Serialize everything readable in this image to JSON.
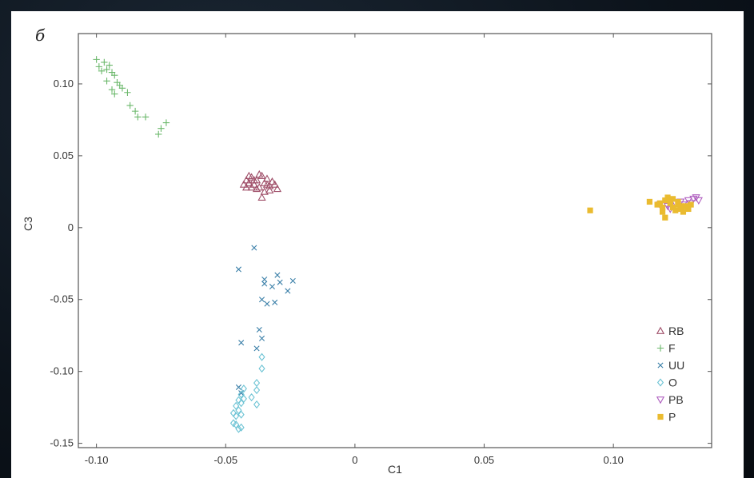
{
  "panel": {
    "label": "б"
  },
  "chart_data": {
    "type": "scatter",
    "title": "",
    "xlabel": "C1",
    "ylabel": "C3",
    "xlim": [
      -0.107,
      0.138
    ],
    "ylim": [
      -0.153,
      0.135
    ],
    "xticks": [
      -0.1,
      -0.05,
      0,
      0.05,
      0.1
    ],
    "xtick_labels": [
      "-0.10",
      "-0.05",
      "0",
      "0.05",
      "0.10"
    ],
    "yticks": [
      0.1,
      0.05,
      0,
      -0.05,
      -0.1,
      -0.15
    ],
    "ytick_labels": [
      "0.10",
      "0.05",
      "0",
      "-0.05",
      "-0.10",
      "-0.15"
    ],
    "grid": false,
    "legend_position": "bottom-right",
    "series": [
      {
        "name": "RB",
        "marker": "triangle-up",
        "color": "#a0506a",
        "points": [
          [
            -0.042,
            0.033
          ],
          [
            -0.041,
            0.031
          ],
          [
            -0.04,
            0.035
          ],
          [
            -0.039,
            0.03
          ],
          [
            -0.038,
            0.033
          ],
          [
            -0.037,
            0.028
          ],
          [
            -0.036,
            0.036
          ],
          [
            -0.035,
            0.031
          ],
          [
            -0.034,
            0.034
          ],
          [
            -0.033,
            0.029
          ],
          [
            -0.032,
            0.032
          ],
          [
            -0.031,
            0.03
          ],
          [
            -0.03,
            0.027
          ],
          [
            -0.036,
            0.021
          ],
          [
            -0.038,
            0.027
          ],
          [
            -0.04,
            0.028
          ],
          [
            -0.035,
            0.025
          ],
          [
            -0.033,
            0.026
          ],
          [
            -0.041,
            0.036
          ],
          [
            -0.037,
            0.037
          ],
          [
            -0.039,
            0.033
          ],
          [
            -0.034,
            0.03
          ],
          [
            -0.043,
            0.03
          ],
          [
            -0.042,
            0.028
          ]
        ]
      },
      {
        "name": "F",
        "marker": "plus",
        "color": "#6bb86b",
        "points": [
          [
            -0.1,
            0.117
          ],
          [
            -0.099,
            0.112
          ],
          [
            -0.098,
            0.109
          ],
          [
            -0.097,
            0.115
          ],
          [
            -0.096,
            0.11
          ],
          [
            -0.095,
            0.113
          ],
          [
            -0.094,
            0.108
          ],
          [
            -0.093,
            0.106
          ],
          [
            -0.092,
            0.101
          ],
          [
            -0.094,
            0.096
          ],
          [
            -0.093,
            0.093
          ],
          [
            -0.09,
            0.097
          ],
          [
            -0.088,
            0.094
          ],
          [
            -0.087,
            0.085
          ],
          [
            -0.085,
            0.081
          ],
          [
            -0.084,
            0.077
          ],
          [
            -0.081,
            0.077
          ],
          [
            -0.076,
            0.065
          ],
          [
            -0.075,
            0.069
          ],
          [
            -0.073,
            0.073
          ],
          [
            -0.096,
            0.102
          ],
          [
            -0.091,
            0.099
          ]
        ]
      },
      {
        "name": "UU",
        "marker": "x",
        "color": "#3a7fa8",
        "points": [
          [
            -0.039,
            -0.014
          ],
          [
            -0.045,
            -0.029
          ],
          [
            -0.035,
            -0.036
          ],
          [
            -0.035,
            -0.039
          ],
          [
            -0.03,
            -0.033
          ],
          [
            -0.029,
            -0.038
          ],
          [
            -0.032,
            -0.041
          ],
          [
            -0.026,
            -0.044
          ],
          [
            -0.024,
            -0.037
          ],
          [
            -0.036,
            -0.05
          ],
          [
            -0.031,
            -0.052
          ],
          [
            -0.034,
            -0.053
          ],
          [
            -0.037,
            -0.071
          ],
          [
            -0.036,
            -0.077
          ],
          [
            -0.044,
            -0.08
          ],
          [
            -0.045,
            -0.111
          ],
          [
            -0.044,
            -0.115
          ],
          [
            -0.038,
            -0.084
          ]
        ]
      },
      {
        "name": "O",
        "marker": "diamond",
        "color": "#6cc3d4",
        "points": [
          [
            -0.036,
            -0.09
          ],
          [
            -0.036,
            -0.098
          ],
          [
            -0.038,
            -0.108
          ],
          [
            -0.038,
            -0.113
          ],
          [
            -0.043,
            -0.112
          ],
          [
            -0.044,
            -0.116
          ],
          [
            -0.045,
            -0.12
          ],
          [
            -0.043,
            -0.119
          ],
          [
            -0.046,
            -0.124
          ],
          [
            -0.045,
            -0.127
          ],
          [
            -0.044,
            -0.122
          ],
          [
            -0.047,
            -0.129
          ],
          [
            -0.046,
            -0.131
          ],
          [
            -0.044,
            -0.13
          ],
          [
            -0.038,
            -0.123
          ],
          [
            -0.046,
            -0.137
          ],
          [
            -0.047,
            -0.136
          ],
          [
            -0.044,
            -0.139
          ],
          [
            -0.045,
            -0.14
          ],
          [
            -0.04,
            -0.118
          ]
        ]
      },
      {
        "name": "PB",
        "marker": "triangle-down",
        "color": "#b060c0",
        "points": [
          [
            0.118,
            0.016
          ],
          [
            0.121,
            0.015
          ],
          [
            0.124,
            0.017
          ],
          [
            0.127,
            0.016
          ],
          [
            0.129,
            0.019
          ],
          [
            0.131,
            0.02
          ],
          [
            0.133,
            0.019
          ],
          [
            0.122,
            0.013
          ],
          [
            0.126,
            0.018
          ],
          [
            0.13,
            0.017
          ],
          [
            0.132,
            0.021
          ]
        ]
      },
      {
        "name": "P",
        "marker": "square",
        "color": "#eabb30",
        "points": [
          [
            0.091,
            0.012
          ],
          [
            0.114,
            0.018
          ],
          [
            0.117,
            0.016
          ],
          [
            0.119,
            0.014
          ],
          [
            0.12,
            0.019
          ],
          [
            0.122,
            0.017
          ],
          [
            0.123,
            0.014
          ],
          [
            0.124,
            0.012
          ],
          [
            0.125,
            0.016
          ],
          [
            0.126,
            0.013
          ],
          [
            0.127,
            0.011
          ],
          [
            0.128,
            0.015
          ],
          [
            0.12,
            0.007
          ],
          [
            0.119,
            0.011
          ],
          [
            0.121,
            0.021
          ],
          [
            0.125,
            0.018
          ],
          [
            0.129,
            0.013
          ],
          [
            0.123,
            0.02
          ],
          [
            0.13,
            0.016
          ],
          [
            0.126,
            0.015
          ],
          [
            0.122,
            0.018
          ],
          [
            0.118,
            0.017
          ]
        ]
      }
    ]
  }
}
